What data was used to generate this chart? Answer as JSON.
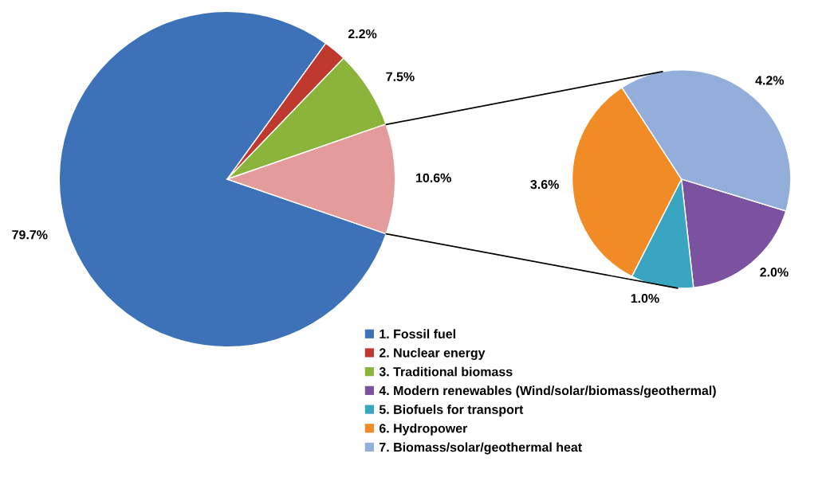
{
  "chart_data": [
    {
      "type": "pie",
      "categories": [
        "1. Fossil fuel",
        "2. Nuclear energy",
        "3. Traditional biomass",
        null
      ],
      "values": [
        79.7,
        2.2,
        7.5,
        10.6
      ],
      "colors": [
        "#3d72b8",
        "#c0392f",
        "#8db43a",
        "#e39b9b"
      ],
      "value_labels": [
        "79.7%",
        "2.2%",
        "7.5%",
        "10.6%"
      ],
      "legend": "bottom"
    },
    {
      "type": "pie",
      "categories": [
        "4. Modern renewables (Wind/solar/biomass/geothermal)",
        "5. Biofuels for transport",
        "6. Hydropower",
        "7. Biomass/solar/geothermal heat"
      ],
      "values": [
        2.0,
        1.0,
        3.6,
        4.2
      ],
      "colors": [
        "#7a52a0",
        "#3aa5c0",
        "#f08b25",
        "#93aedb"
      ],
      "value_labels": [
        "2.0%",
        "1.0%",
        "3.6%",
        "4.2%"
      ],
      "legend": "bottom"
    }
  ]
}
